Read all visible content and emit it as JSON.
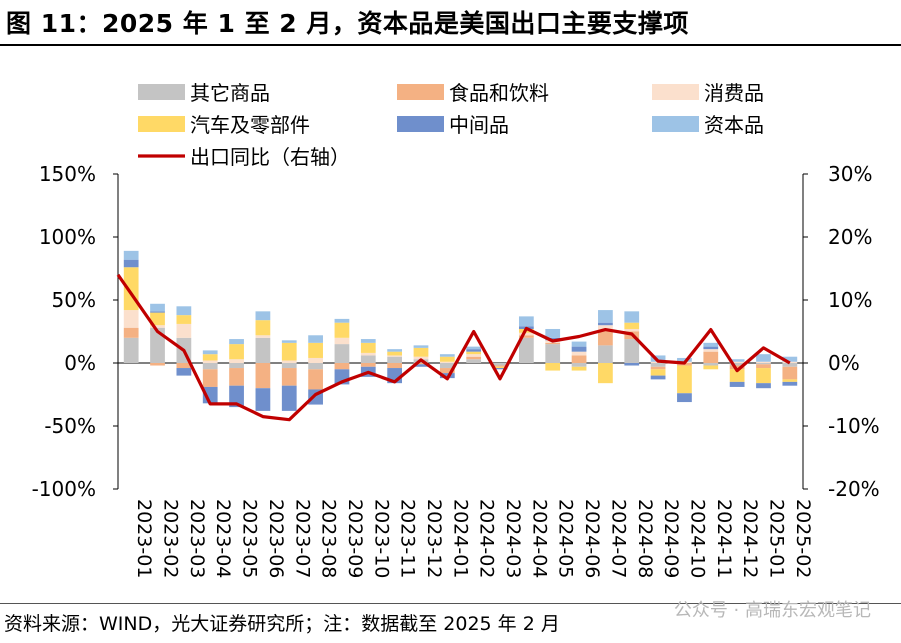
{
  "title": "图 11：2025 年 1 至 2 月，资本品是美国出口主要支撑项",
  "source": "资料来源：WIND，光大证券研究所；注：数据截至 2025 年 2 月",
  "watermark": "公众号 · 高瑞东宏观笔记",
  "chart_data": {
    "type": "bar",
    "stacked": true,
    "categories": [
      "2023-01",
      "2023-02",
      "2023-03",
      "2023-04",
      "2023-05",
      "2023-06",
      "2023-07",
      "2023-08",
      "2023-09",
      "2023-10",
      "2023-11",
      "2023-12",
      "2024-01",
      "2024-02",
      "2024-03",
      "2024-04",
      "2024-05",
      "2024-06",
      "2024-07",
      "2024-08",
      "2024-09",
      "2024-10",
      "2024-11",
      "2024-12",
      "2025-01",
      "2025-02"
    ],
    "left_axis": {
      "ylim": [
        -100,
        150
      ],
      "ticks": [
        "150%",
        "100%",
        "50%",
        "0%",
        "-50%",
        "-100%"
      ]
    },
    "right_axis": {
      "ylim": [
        -20,
        30
      ],
      "ticks": [
        "30%",
        "20%",
        "10%",
        "0%",
        "-10%",
        "-20%"
      ]
    },
    "legend_position": "top",
    "series": [
      {
        "name": "其它商品",
        "color": "#c4c4c4",
        "values": [
          20,
          28,
          20,
          -5,
          -4,
          20,
          -4,
          -5,
          15,
          6,
          5,
          3,
          -4,
          3,
          -2,
          20,
          15,
          -3,
          14,
          19,
          -3,
          0,
          -2,
          -2,
          -1,
          -3
        ]
      },
      {
        "name": "食品和饮料",
        "color": "#f4b183",
        "values": [
          8,
          -2,
          -4,
          -14,
          -14,
          -20,
          -14,
          -16,
          -5,
          -3,
          -4,
          -1,
          -4,
          2,
          -1,
          2,
          1,
          6,
          12,
          6,
          -2,
          -2,
          9,
          -3,
          -3,
          -10
        ]
      },
      {
        "name": "消费品",
        "color": "#fbe0cd",
        "values": [
          14,
          2,
          11,
          2,
          3,
          2,
          2,
          4,
          5,
          2,
          1,
          2,
          1,
          2,
          0,
          2,
          2,
          3,
          4,
          2,
          1,
          1,
          2,
          1,
          1,
          1
        ]
      },
      {
        "name": "汽车及零部件",
        "color": "#ffd966",
        "values": [
          34,
          10,
          7,
          5,
          12,
          12,
          14,
          12,
          12,
          8,
          3,
          7,
          4,
          2,
          -1,
          3,
          -6,
          -3,
          -16,
          5,
          -5,
          -22,
          -3,
          -10,
          -12,
          -2
        ]
      },
      {
        "name": "中间品",
        "color": "#6f8fcc",
        "values": [
          6,
          1,
          -6,
          -13,
          -17,
          -18,
          -20,
          -12,
          -12,
          -8,
          -12,
          -2,
          -4,
          2,
          -1,
          2,
          2,
          4,
          2,
          -2,
          -3,
          -7,
          2,
          -4,
          -4,
          -3
        ]
      },
      {
        "name": "资本品",
        "color": "#9dc3e6",
        "values": [
          7,
          6,
          7,
          3,
          4,
          7,
          2,
          6,
          3,
          3,
          2,
          2,
          2,
          2,
          0,
          8,
          7,
          4,
          10,
          9,
          5,
          3,
          3,
          2,
          6,
          4
        ]
      }
    ],
    "line": {
      "name": "出口同比（右轴）",
      "color": "#c00000",
      "axis": "right",
      "values": [
        11,
        5,
        2,
        -6.5,
        -6.5,
        -8.5,
        -9,
        -5,
        -3,
        -1.5,
        -3,
        0.5,
        -2.5,
        5,
        -2.5,
        5.5,
        3.5,
        4.2,
        5.3,
        4.6,
        0.3,
        0,
        5.3,
        -1.2,
        2.4,
        0
      ]
    }
  }
}
